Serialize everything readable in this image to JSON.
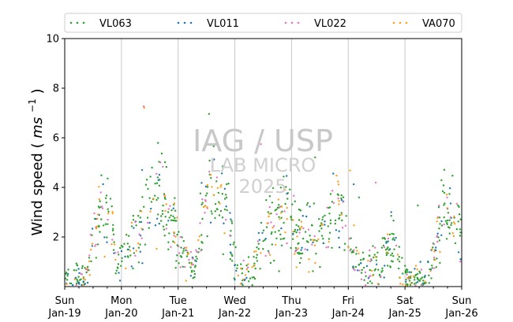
{
  "chart_data": {
    "type": "scatter",
    "title": "",
    "xlabel": "",
    "ylabel": "Wind speed",
    "ylabel_unit_base": "ms",
    "ylabel_unit_exp": "−1",
    "ylim": [
      0,
      10
    ],
    "xlim": [
      0,
      7
    ],
    "y_ticks": [
      2,
      4,
      6,
      8,
      10
    ],
    "x_ticks": [
      {
        "pos": 0,
        "day": "Sun",
        "date": "Jan-19"
      },
      {
        "pos": 1,
        "day": "Mon",
        "date": "Jan-20"
      },
      {
        "pos": 2,
        "day": "Tue",
        "date": "Jan-21"
      },
      {
        "pos": 3,
        "day": "Wed",
        "date": "Jan-22"
      },
      {
        "pos": 4,
        "day": "Thu",
        "date": "Jan-23"
      },
      {
        "pos": 5,
        "day": "Fri",
        "date": "Jan-24"
      },
      {
        "pos": 6,
        "day": "Sat",
        "date": "Jan-25"
      },
      {
        "pos": 7,
        "day": "Sun",
        "date": "Jan-26"
      }
    ],
    "grid": "vertical",
    "legend_position": "top",
    "series": [
      {
        "name": "VL063",
        "color": "#2ca02c"
      },
      {
        "name": "VL011",
        "color": "#1f77b4"
      },
      {
        "name": "VL022",
        "color": "#e377c2"
      },
      {
        "name": "VA070",
        "color": "#ff9f1c"
      }
    ],
    "profile": {
      "x": [
        0,
        0.1,
        0.3,
        0.4,
        0.5,
        0.55,
        0.65,
        0.75,
        0.85,
        0.92,
        1.0,
        1.1,
        1.25,
        1.35,
        1.45,
        1.55,
        1.65,
        1.72,
        1.8,
        1.9,
        2.0,
        2.1,
        2.2,
        2.3,
        2.45,
        2.55,
        2.65,
        2.8,
        2.9,
        3.0,
        3.1,
        3.2,
        3.35,
        3.45,
        3.55,
        3.7,
        3.85,
        4.0,
        4.1,
        4.25,
        4.4,
        4.55,
        4.7,
        4.8,
        4.9,
        5.0,
        5.1,
        5.25,
        5.4,
        5.55,
        5.65,
        5.75,
        5.85,
        6.0,
        6.15,
        6.3,
        6.4,
        6.5,
        6.65,
        6.8,
        6.9,
        7.0
      ],
      "y": [
        0.4,
        0.3,
        0.3,
        0.6,
        2.0,
        2.6,
        3.0,
        3.2,
        2.2,
        0.6,
        1.2,
        1.6,
        1.8,
        2.4,
        3.4,
        3.8,
        4.2,
        3.6,
        3.2,
        2.6,
        1.6,
        1.2,
        1.1,
        0.6,
        3.2,
        4.2,
        4.0,
        3.6,
        2.4,
        0.8,
        0.5,
        0.4,
        0.6,
        1.8,
        2.6,
        2.4,
        3.2,
        2.8,
        1.8,
        2.2,
        1.8,
        2.0,
        2.8,
        3.4,
        2.6,
        1.8,
        1.2,
        0.8,
        0.8,
        1.0,
        1.4,
        1.8,
        1.6,
        0.4,
        0.3,
        0.4,
        0.5,
        1.2,
        2.8,
        3.0,
        2.4,
        2.0
      ]
    },
    "annotations": [
      "IAG / USP",
      "LAB MICRO",
      "2025"
    ]
  }
}
